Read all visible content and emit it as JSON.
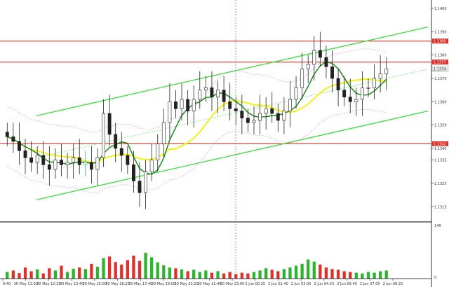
{
  "chart_data": {
    "type": "candlestick",
    "grid": false,
    "colors": {
      "candle": "#222222",
      "highlight_candle": "#3aa79a",
      "channel": "#36e23a",
      "channel_mid": "#36e23a",
      "level": "#e0302a",
      "ma_fast": "#1a8a1a",
      "ma_slow": "#f2f200",
      "bands": "#cc88cc",
      "vol_up": "#2bb52b",
      "vol_down": "#e0302a"
    },
    "y_axis": {
      "ticks": [
        "1.1400",
        "1.1390",
        "1.1380",
        "1.1370",
        "1.1360",
        "1.1350",
        "1.1340",
        "1.1335",
        "1.1325",
        "1.1315"
      ],
      "range": [
        1.131,
        1.1403
      ]
    },
    "levels": [
      {
        "label": "1.1386",
        "value": 1.1386
      },
      {
        "label": "1.1377",
        "value": 1.1377
      },
      {
        "label": "1.1342",
        "value": 1.1342
      }
    ],
    "current_price_label": "1.1374",
    "x_labels": [
      "9:40",
      "30 May 11:00",
      "30 May 12:20",
      "30 May 13:40",
      "30 May 15:00",
      "30 May 16:20",
      "30 May 17:40",
      "30 May 19:00",
      "30 May 20:20",
      "30 May 21:40",
      "30 May 23:00",
      "2 Jun 00:20",
      "2 Jun 01:40",
      "2 Jun 03:00",
      "2 Jun 04:20",
      "2 Jun 05:40",
      "2 Jun 07:00",
      "2 Jun 08:20"
    ],
    "volume_axis": {
      "max_label": "148",
      "zero_label": "0"
    },
    "candles_close": [
      1.1345,
      1.1343,
      1.1339,
      1.1336,
      1.1334,
      1.1337,
      1.1333,
      1.1331,
      1.1335,
      1.1333,
      1.1334,
      1.1336,
      1.1333,
      1.1334,
      1.1331,
      1.1336,
      1.1355,
      1.1346,
      1.134,
      1.1337,
      1.1333,
      1.1326,
      1.1321,
      1.133,
      1.1335,
      1.1342,
      1.1351,
      1.136,
      1.1357,
      1.1361,
      1.1356,
      1.1361,
      1.1365,
      1.1366,
      1.1362,
      1.1365,
      1.136,
      1.1357,
      1.1356,
      1.1353,
      1.1351,
      1.1352,
      1.1355,
      1.1357,
      1.1355,
      1.1352,
      1.1356,
      1.1361,
      1.1366,
      1.1374,
      1.1376,
      1.1382,
      1.1379,
      1.1375,
      1.137,
      1.1365,
      1.1362,
      1.136,
      1.1361,
      1.1366,
      1.1366,
      1.137,
      1.1372,
      1.1374
    ],
    "highlight_candle_index": 13,
    "volumes": [
      18,
      22,
      15,
      30,
      20,
      25,
      14,
      28,
      22,
      35,
      18,
      27,
      30,
      26,
      40,
      32,
      55,
      60,
      45,
      38,
      50,
      62,
      48,
      70,
      58,
      44,
      36,
      30,
      28,
      25,
      20,
      24,
      18,
      22,
      16,
      20,
      14,
      18,
      12,
      16,
      14,
      18,
      22,
      28,
      24,
      20,
      26,
      30,
      35,
      40,
      52,
      46,
      38,
      30,
      26,
      24,
      20,
      18,
      16,
      14,
      18,
      16,
      20,
      22
    ]
  }
}
